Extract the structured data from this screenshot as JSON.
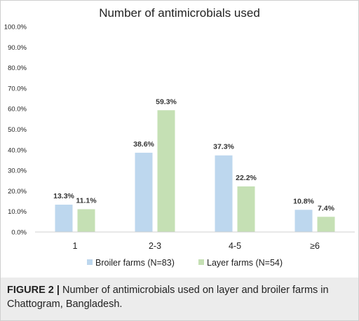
{
  "chart_data": {
    "type": "bar",
    "title": "Number of antimicrobials used",
    "xlabel": "",
    "ylabel": "",
    "categories": [
      "1",
      "2-3",
      "4-5",
      "≥6"
    ],
    "series": [
      {
        "name": "Broiler farms (N=83)",
        "values": [
          13.3,
          38.6,
          37.3,
          10.8
        ],
        "labels": [
          "13.3%",
          "38.6%",
          "37.3%",
          "10.8%"
        ],
        "color": "#bdd7ee"
      },
      {
        "name": "Layer farms (N=54)",
        "values": [
          11.1,
          59.3,
          22.2,
          7.4
        ],
        "labels": [
          "11.1%",
          "59.3%",
          "22.2%",
          "7.4%"
        ],
        "color": "#c5e0b4"
      }
    ],
    "ylim": [
      0,
      100
    ],
    "yticks": [
      "0.0%",
      "10.0%",
      "20.0%",
      "30.0%",
      "40.0%",
      "50.0%",
      "60.0%",
      "70.0%",
      "80.0%",
      "90.0%",
      "100.0%"
    ],
    "grid": false,
    "legend": "bottom"
  },
  "caption": {
    "label": "FIGURE 2 |",
    "text": " Number of antimicrobials used on layer and broiler farms in Chattogram, Bangladesh."
  }
}
